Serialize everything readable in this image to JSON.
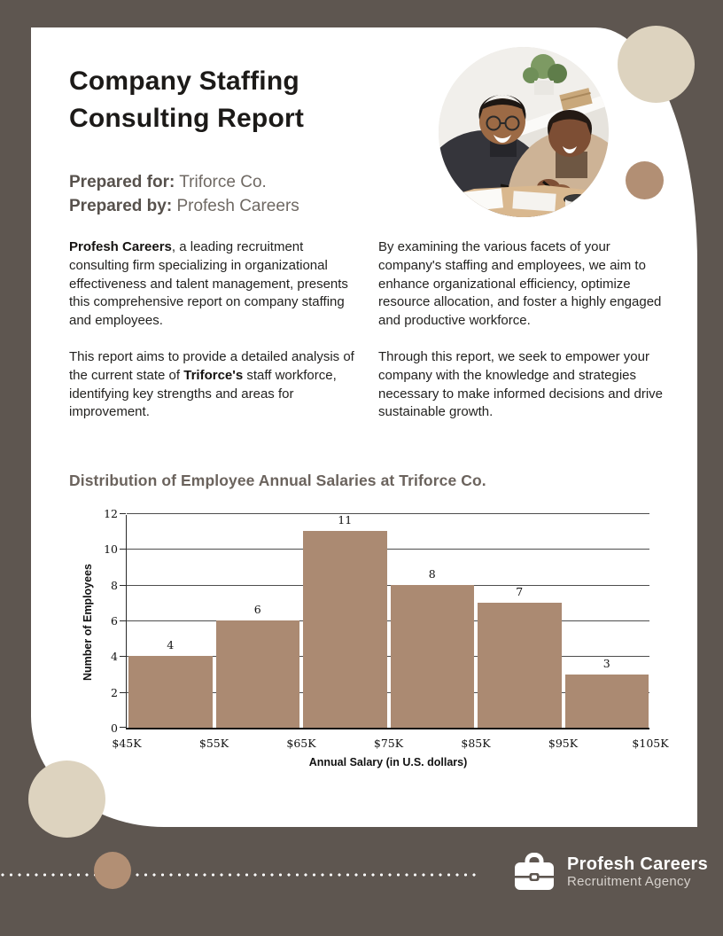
{
  "colors": {
    "background": "#5e5650",
    "cream_circle": "#ddd3bf",
    "tan_circle": "#b28f74",
    "bar": "#ab8a72"
  },
  "header": {
    "title_line1": "Company Staffing",
    "title_line2": "Consulting Report",
    "prepared_for_label": "Prepared for:",
    "prepared_for_value": "Triforce Co.",
    "prepared_by_label": "Prepared by:",
    "prepared_by_value": "Profesh Careers"
  },
  "intro": {
    "col1_p1_bold": "Profesh Careers",
    "col1_p1_rest": ", a leading recruitment consulting firm specializing in organizational effectiveness and talent management, presents this comprehensive report on company staffing and employees.",
    "col1_p2_pre": "This report aims to provide a detailed analysis of the current state of ",
    "col1_p2_bold": "Triforce's",
    "col1_p2_post": " staff workforce, identifying key strengths and areas for improvement.",
    "col2_p1": "By examining the various facets of your company's staffing and employees, we aim to enhance organizational efficiency, optimize resource allocation, and foster a highly engaged and productive workforce.",
    "col2_p2": "Through this report, we seek to empower your company with the knowledge and strategies necessary to make informed decisions and drive sustainable growth."
  },
  "chart_heading": "Distribution of Employee Annual Salaries at Triforce Co.",
  "chart_data": {
    "type": "bar",
    "subtype": "histogram",
    "title": "Distribution of Employee Annual Salaries at Triforce Co.",
    "bin_edges": [
      "$45K",
      "$55K",
      "$65K",
      "$75K",
      "$85K",
      "$95K",
      "$105K"
    ],
    "values": [
      4,
      6,
      11,
      8,
      7,
      3
    ],
    "xlabel": "Annual Salary (in U.S. dollars)",
    "ylabel": "Number of Employees",
    "ylim": [
      0,
      12
    ],
    "ytick_step": 2,
    "grid": true,
    "value_labels": true,
    "bar_color": "#ab8a72",
    "legend": "none"
  },
  "footer": {
    "brand_name": "Profesh Careers",
    "brand_tagline": "Recruitment Agency",
    "brand_icon": "briefcase-icon"
  }
}
